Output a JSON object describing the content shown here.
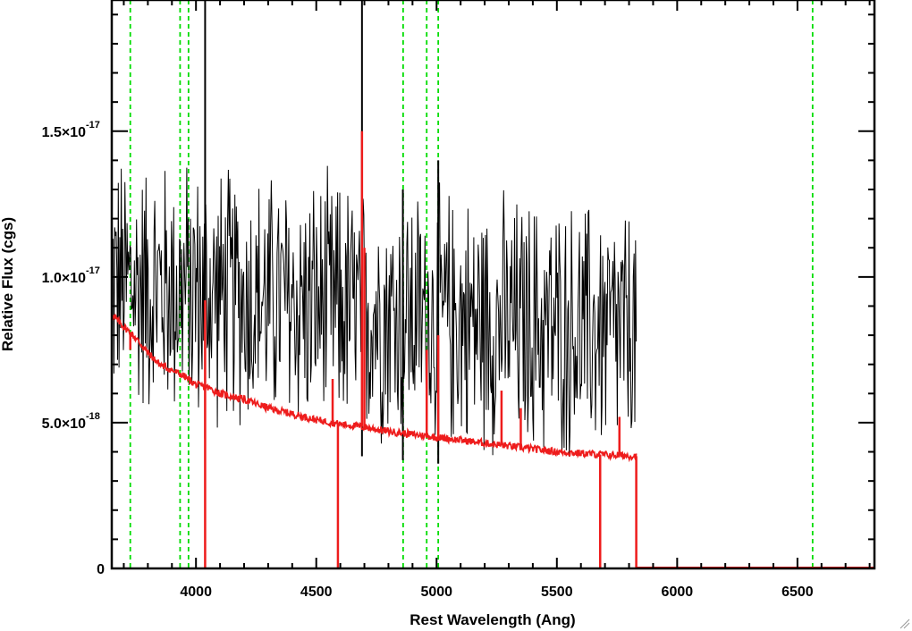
{
  "chart_data": {
    "type": "line",
    "title": "",
    "xlabel": "Rest Wavelength (Ang)",
    "ylabel": "Relative Flux (cgs)",
    "xlim": [
      3650,
      6820
    ],
    "ylim": [
      0,
      1.95e-17
    ],
    "x_ticks": [
      {
        "value": 4000,
        "label": "4000"
      },
      {
        "value": 4500,
        "label": "4500"
      },
      {
        "value": 5000,
        "label": "5000"
      },
      {
        "value": 5500,
        "label": "5500"
      },
      {
        "value": 6000,
        "label": "6000"
      },
      {
        "value": 6500,
        "label": "6500"
      }
    ],
    "y_ticks": [
      {
        "value": 0,
        "mantissa": "0",
        "exponent": ""
      },
      {
        "value": 5e-18,
        "mantissa": "5.0×10",
        "exponent": "-18"
      },
      {
        "value": 1e-17,
        "mantissa": "1.0×10",
        "exponent": "-17"
      },
      {
        "value": 1.5e-17,
        "mantissa": "1.5×10",
        "exponent": "-17"
      }
    ],
    "series": [
      {
        "role": "observed-spectrum",
        "color": "#000000",
        "x_range": [
          3650,
          5830
        ],
        "baseline": [
          [
            3650,
            9.8e-18
          ],
          [
            4000,
            9.5e-18
          ],
          [
            4500,
            9e-18
          ],
          [
            5000,
            8.6e-18
          ],
          [
            5500,
            8.2e-18
          ],
          [
            5830,
            8e-18
          ]
        ],
        "noise_amplitude": 4.2e-18,
        "spikes": [
          [
            4038,
            1.95e-17
          ],
          [
            4690,
            1.95e-17
          ],
          [
            4860,
            1.3e-17
          ],
          [
            5007,
            1.4e-17
          ]
        ]
      },
      {
        "role": "model-spectrum",
        "color": "#ee1c1c",
        "points": [
          [
            3650,
            8.7e-18
          ],
          [
            3700,
            8.3e-18
          ],
          [
            3750,
            7.9e-18
          ],
          [
            3800,
            7.4e-18
          ],
          [
            3850,
            7e-18
          ],
          [
            3900,
            6.8e-18
          ],
          [
            3950,
            6.6e-18
          ],
          [
            4000,
            6.3e-18
          ],
          [
            4050,
            6.2e-18
          ],
          [
            4100,
            6e-18
          ],
          [
            4200,
            5.8e-18
          ],
          [
            4300,
            5.5e-18
          ],
          [
            4400,
            5.3e-18
          ],
          [
            4500,
            5.1e-18
          ],
          [
            4600,
            4.95e-18
          ],
          [
            4700,
            4.85e-18
          ],
          [
            4800,
            4.7e-18
          ],
          [
            4900,
            4.6e-18
          ],
          [
            5000,
            4.5e-18
          ],
          [
            5100,
            4.4e-18
          ],
          [
            5200,
            4.3e-18
          ],
          [
            5300,
            4.2e-18
          ],
          [
            5400,
            4.1e-18
          ],
          [
            5500,
            4e-18
          ],
          [
            5600,
            3.95e-18
          ],
          [
            5700,
            3.9e-18
          ],
          [
            5830,
            3.85e-18
          ]
        ],
        "emission_lines": [
          [
            3727,
            7.5e-18
          ],
          [
            4038,
            9.2e-18
          ],
          [
            4568,
            6.5e-18
          ],
          [
            4690,
            1.5e-17
          ],
          [
            4700,
            1.1e-17
          ],
          [
            4959,
            7.5e-18
          ],
          [
            5007,
            8e-18
          ],
          [
            5270,
            6.1e-18
          ],
          [
            5350,
            5.5e-18
          ],
          [
            5760,
            5.2e-18
          ]
        ],
        "dropouts": [
          4038,
          4590,
          5680,
          5830
        ],
        "zero_after": 5830
      }
    ],
    "reference_lines": {
      "color": "#00dd00",
      "style": "dashed",
      "wavelengths": [
        3727,
        3934,
        3969,
        4861,
        4959,
        5007,
        6563
      ]
    },
    "grid": false,
    "legend": "none"
  }
}
